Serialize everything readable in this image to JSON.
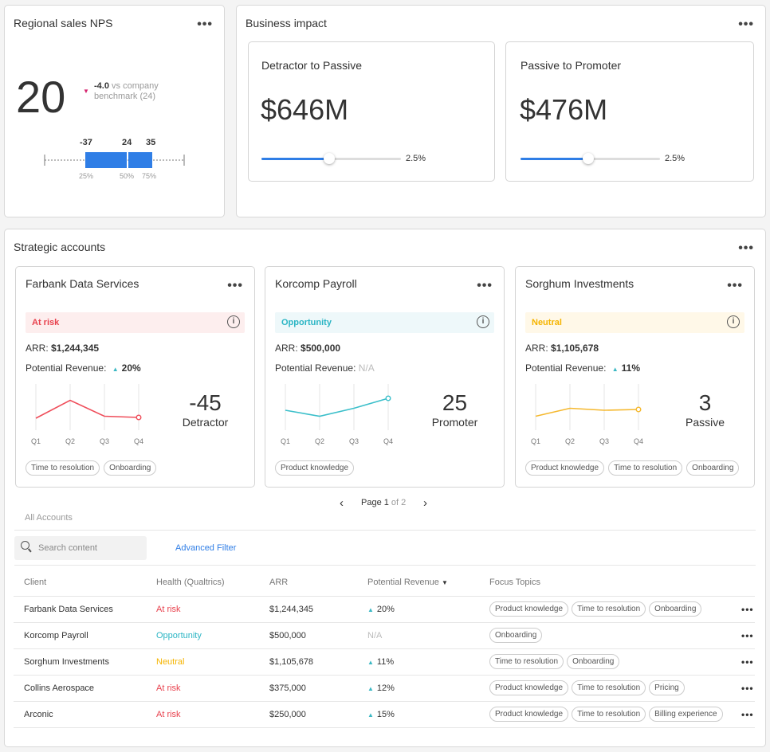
{
  "nps": {
    "title": "Regional sales NPS",
    "value": "20",
    "delta": "-4.0",
    "delta_text": " vs company benchmark (24)",
    "delta_color": "#d6246e",
    "box": {
      "labels_top": [
        "-37",
        "24",
        "35"
      ],
      "labels_bottom": [
        "25%",
        "50%",
        "75%"
      ],
      "color": "#2f7ee6"
    }
  },
  "impact": {
    "title": "Business impact",
    "cards": [
      {
        "title": "Detractor to Passive",
        "value": "$646M",
        "slider_pct": "2.5%",
        "slider_fill": 0.48
      },
      {
        "title": "Passive to Promoter",
        "value": "$476M",
        "slider_pct": "2.5%",
        "slider_fill": 0.48
      }
    ]
  },
  "strategic": {
    "title": "Strategic accounts",
    "accounts": [
      {
        "name": "Farbank Data Services",
        "status": "At risk",
        "status_color": "#e8414d",
        "status_bg": "#fdeeee",
        "arr_label": "ARR: ",
        "arr": "$1,244,345",
        "pr_label": "Potential Revenue: ",
        "pr": "20%",
        "pr_up": true,
        "score": "-45",
        "score_label": "Detractor",
        "line_color": "#ef4d5a",
        "trend": [
          0.3,
          0.75,
          0.35,
          0.32
        ],
        "quarters": [
          "Q1",
          "Q2",
          "Q3",
          "Q4"
        ],
        "tags": [
          "Time to resolution",
          "Onboarding"
        ]
      },
      {
        "name": "Korcomp Payroll",
        "status": "Opportunity",
        "status_color": "#2bb5c4",
        "status_bg": "#eef8fa",
        "arr_label": "ARR: ",
        "arr": "$500,000",
        "pr_label": "Potential Revenue: ",
        "pr": "N/A",
        "pr_up": false,
        "score": "25",
        "score_label": "Promoter",
        "line_color": "#3bbfca",
        "trend": [
          0.5,
          0.35,
          0.55,
          0.8
        ],
        "quarters": [
          "Q1",
          "Q2",
          "Q3",
          "Q4"
        ],
        "tags": [
          "Product knowledge"
        ]
      },
      {
        "name": "Sorghum Investments",
        "status": "Neutral",
        "status_color": "#f5b400",
        "status_bg": "#fff8e8",
        "arr_label": "ARR: ",
        "arr": "$1,105,678",
        "pr_label": "Potential Revenue: ",
        "pr": "11%",
        "pr_up": true,
        "score": "3",
        "score_label": "Passive",
        "line_color": "#f5b82e",
        "trend": [
          0.35,
          0.55,
          0.5,
          0.52
        ],
        "quarters": [
          "Q1",
          "Q2",
          "Q3",
          "Q4"
        ],
        "tags": [
          "Product knowledge",
          "Time to resolution",
          "Onboarding"
        ]
      }
    ],
    "pagination": {
      "prev": "‹",
      "text_pre": "Page ",
      "page": "1",
      "text_of": " of 2",
      "next": "›"
    },
    "all_accounts": "All Accounts",
    "search_placeholder": "Search content",
    "advanced_filter": "Advanced Filter",
    "columns": [
      "Client",
      "Health (Qualtrics)",
      "ARR",
      "Potential Revenue",
      "Focus Topics"
    ],
    "rows": [
      {
        "client": "Farbank Data Services",
        "health": "At risk",
        "health_color": "#e8414d",
        "arr": "$1,244,345",
        "pr": "20%",
        "topics": [
          "Product knowledge",
          "Time to resolution",
          "Onboarding"
        ]
      },
      {
        "client": "Korcomp Payroll",
        "health": "Opportunity",
        "health_color": "#2bb5c4",
        "arr": "$500,000",
        "pr": "N/A",
        "topics": [
          "Onboarding"
        ]
      },
      {
        "client": "Sorghum Investments",
        "health": "Neutral",
        "health_color": "#f5b400",
        "arr": "$1,105,678",
        "pr": "11%",
        "topics": [
          "Time to resolution",
          "Onboarding"
        ]
      },
      {
        "client": "Collins Aerospace",
        "health": "At risk",
        "health_color": "#e8414d",
        "arr": "$375,000",
        "pr": "12%",
        "topics": [
          "Product knowledge",
          "Time to resolution",
          "Pricing"
        ]
      },
      {
        "client": "Arconic",
        "health": "At risk",
        "health_color": "#e8414d",
        "arr": "$250,000",
        "pr": "15%",
        "topics": [
          "Product knowledge",
          "Time to resolution",
          "Billing experience"
        ]
      }
    ]
  }
}
